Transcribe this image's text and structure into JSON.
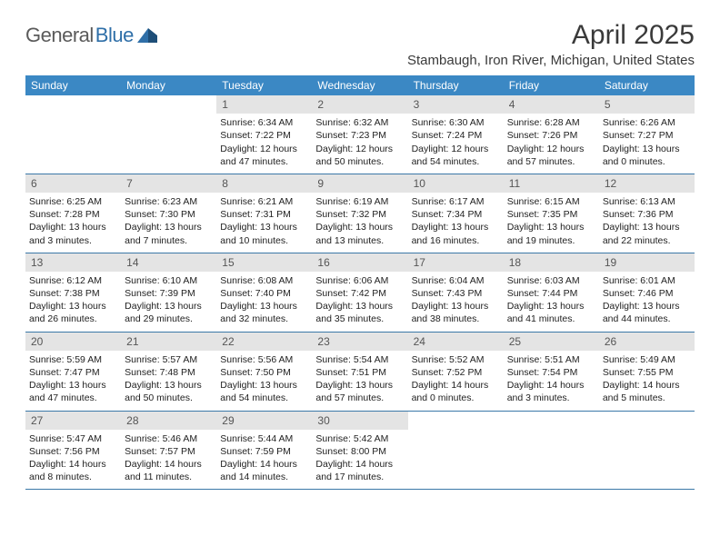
{
  "brand": {
    "name1": "General",
    "name2": "Blue"
  },
  "title": "April 2025",
  "location": "Stambaugh, Iron River, Michigan, United States",
  "colors": {
    "header_bg": "#3b88c4",
    "header_text": "#ffffff",
    "daynum_bg": "#e4e4e4",
    "rule": "#3b78a8",
    "text": "#222222",
    "brand_gray": "#5a5a5a",
    "brand_blue": "#2f6fa8"
  },
  "weekdays": [
    "Sunday",
    "Monday",
    "Tuesday",
    "Wednesday",
    "Thursday",
    "Friday",
    "Saturday"
  ],
  "weeks": [
    [
      {
        "empty": true
      },
      {
        "empty": true
      },
      {
        "n": "1",
        "sr": "Sunrise: 6:34 AM",
        "ss": "Sunset: 7:22 PM",
        "dl": "Daylight: 12 hours and 47 minutes."
      },
      {
        "n": "2",
        "sr": "Sunrise: 6:32 AM",
        "ss": "Sunset: 7:23 PM",
        "dl": "Daylight: 12 hours and 50 minutes."
      },
      {
        "n": "3",
        "sr": "Sunrise: 6:30 AM",
        "ss": "Sunset: 7:24 PM",
        "dl": "Daylight: 12 hours and 54 minutes."
      },
      {
        "n": "4",
        "sr": "Sunrise: 6:28 AM",
        "ss": "Sunset: 7:26 PM",
        "dl": "Daylight: 12 hours and 57 minutes."
      },
      {
        "n": "5",
        "sr": "Sunrise: 6:26 AM",
        "ss": "Sunset: 7:27 PM",
        "dl": "Daylight: 13 hours and 0 minutes."
      }
    ],
    [
      {
        "n": "6",
        "sr": "Sunrise: 6:25 AM",
        "ss": "Sunset: 7:28 PM",
        "dl": "Daylight: 13 hours and 3 minutes."
      },
      {
        "n": "7",
        "sr": "Sunrise: 6:23 AM",
        "ss": "Sunset: 7:30 PM",
        "dl": "Daylight: 13 hours and 7 minutes."
      },
      {
        "n": "8",
        "sr": "Sunrise: 6:21 AM",
        "ss": "Sunset: 7:31 PM",
        "dl": "Daylight: 13 hours and 10 minutes."
      },
      {
        "n": "9",
        "sr": "Sunrise: 6:19 AM",
        "ss": "Sunset: 7:32 PM",
        "dl": "Daylight: 13 hours and 13 minutes."
      },
      {
        "n": "10",
        "sr": "Sunrise: 6:17 AM",
        "ss": "Sunset: 7:34 PM",
        "dl": "Daylight: 13 hours and 16 minutes."
      },
      {
        "n": "11",
        "sr": "Sunrise: 6:15 AM",
        "ss": "Sunset: 7:35 PM",
        "dl": "Daylight: 13 hours and 19 minutes."
      },
      {
        "n": "12",
        "sr": "Sunrise: 6:13 AM",
        "ss": "Sunset: 7:36 PM",
        "dl": "Daylight: 13 hours and 22 minutes."
      }
    ],
    [
      {
        "n": "13",
        "sr": "Sunrise: 6:12 AM",
        "ss": "Sunset: 7:38 PM",
        "dl": "Daylight: 13 hours and 26 minutes."
      },
      {
        "n": "14",
        "sr": "Sunrise: 6:10 AM",
        "ss": "Sunset: 7:39 PM",
        "dl": "Daylight: 13 hours and 29 minutes."
      },
      {
        "n": "15",
        "sr": "Sunrise: 6:08 AM",
        "ss": "Sunset: 7:40 PM",
        "dl": "Daylight: 13 hours and 32 minutes."
      },
      {
        "n": "16",
        "sr": "Sunrise: 6:06 AM",
        "ss": "Sunset: 7:42 PM",
        "dl": "Daylight: 13 hours and 35 minutes."
      },
      {
        "n": "17",
        "sr": "Sunrise: 6:04 AM",
        "ss": "Sunset: 7:43 PM",
        "dl": "Daylight: 13 hours and 38 minutes."
      },
      {
        "n": "18",
        "sr": "Sunrise: 6:03 AM",
        "ss": "Sunset: 7:44 PM",
        "dl": "Daylight: 13 hours and 41 minutes."
      },
      {
        "n": "19",
        "sr": "Sunrise: 6:01 AM",
        "ss": "Sunset: 7:46 PM",
        "dl": "Daylight: 13 hours and 44 minutes."
      }
    ],
    [
      {
        "n": "20",
        "sr": "Sunrise: 5:59 AM",
        "ss": "Sunset: 7:47 PM",
        "dl": "Daylight: 13 hours and 47 minutes."
      },
      {
        "n": "21",
        "sr": "Sunrise: 5:57 AM",
        "ss": "Sunset: 7:48 PM",
        "dl": "Daylight: 13 hours and 50 minutes."
      },
      {
        "n": "22",
        "sr": "Sunrise: 5:56 AM",
        "ss": "Sunset: 7:50 PM",
        "dl": "Daylight: 13 hours and 54 minutes."
      },
      {
        "n": "23",
        "sr": "Sunrise: 5:54 AM",
        "ss": "Sunset: 7:51 PM",
        "dl": "Daylight: 13 hours and 57 minutes."
      },
      {
        "n": "24",
        "sr": "Sunrise: 5:52 AM",
        "ss": "Sunset: 7:52 PM",
        "dl": "Daylight: 14 hours and 0 minutes."
      },
      {
        "n": "25",
        "sr": "Sunrise: 5:51 AM",
        "ss": "Sunset: 7:54 PM",
        "dl": "Daylight: 14 hours and 3 minutes."
      },
      {
        "n": "26",
        "sr": "Sunrise: 5:49 AM",
        "ss": "Sunset: 7:55 PM",
        "dl": "Daylight: 14 hours and 5 minutes."
      }
    ],
    [
      {
        "n": "27",
        "sr": "Sunrise: 5:47 AM",
        "ss": "Sunset: 7:56 PM",
        "dl": "Daylight: 14 hours and 8 minutes."
      },
      {
        "n": "28",
        "sr": "Sunrise: 5:46 AM",
        "ss": "Sunset: 7:57 PM",
        "dl": "Daylight: 14 hours and 11 minutes."
      },
      {
        "n": "29",
        "sr": "Sunrise: 5:44 AM",
        "ss": "Sunset: 7:59 PM",
        "dl": "Daylight: 14 hours and 14 minutes."
      },
      {
        "n": "30",
        "sr": "Sunrise: 5:42 AM",
        "ss": "Sunset: 8:00 PM",
        "dl": "Daylight: 14 hours and 17 minutes."
      },
      {
        "empty": true
      },
      {
        "empty": true
      },
      {
        "empty": true
      }
    ]
  ]
}
